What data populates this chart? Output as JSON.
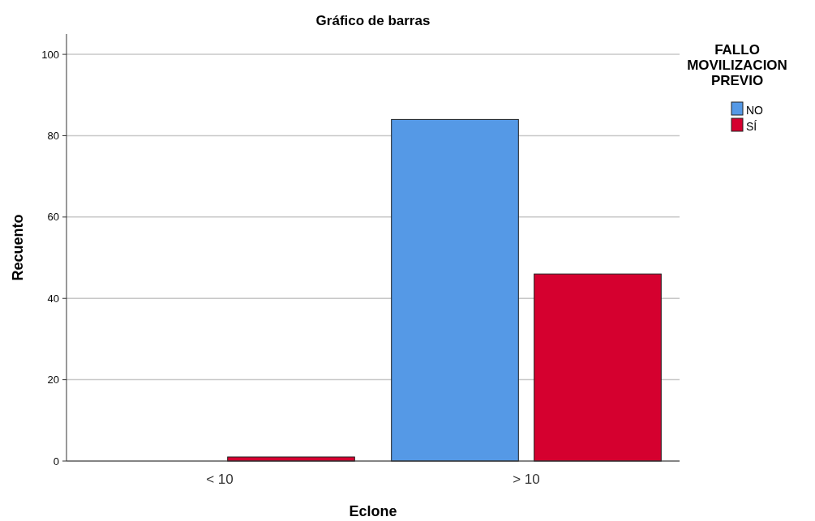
{
  "chart_data": {
    "type": "bar",
    "title": "Gráfico de barras",
    "xlabel": "Eclone",
    "ylabel": "Recuento",
    "legend_title": "FALLO MOVILIZACION PREVIO",
    "categories": [
      "< 10",
      "> 10"
    ],
    "series": [
      {
        "name": "NO",
        "color": "#5599e6",
        "values": [
          0,
          84
        ]
      },
      {
        "name": "SÍ",
        "color": "#d5002f",
        "values": [
          1,
          46
        ]
      }
    ],
    "ylim": [
      0,
      105
    ],
    "yticks": [
      0,
      20,
      40,
      60,
      80,
      100
    ],
    "grid": "y",
    "legend": "top right"
  }
}
